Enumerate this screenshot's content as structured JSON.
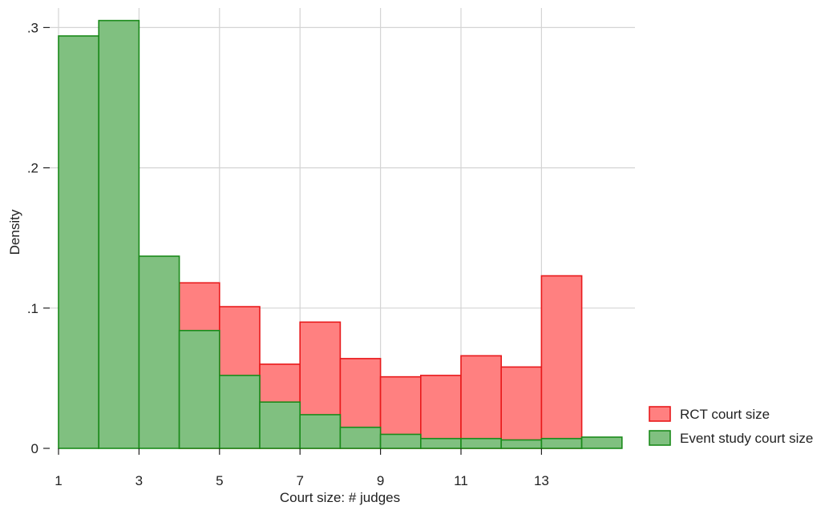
{
  "chart_data": {
    "type": "bar",
    "subtype": "overlaid-histogram",
    "title": "",
    "xlabel": "Court size: # judges",
    "ylabel": "Density",
    "xlim": [
      0.9,
      15.0
    ],
    "ylim": [
      0,
      0.3
    ],
    "x_ticks": [
      1,
      3,
      5,
      7,
      9,
      11,
      13
    ],
    "x_tick_labels": [
      "1",
      "3",
      "5",
      "7",
      "9",
      "11",
      "13"
    ],
    "y_ticks": [
      0,
      0.1,
      0.2,
      0.3
    ],
    "y_tick_labels": [
      "0",
      ".1",
      ".2",
      ".3"
    ],
    "grid": true,
    "legend_position": "bottom-right",
    "series": [
      {
        "name": "RCT court size",
        "fill": "#ff8080",
        "stroke": "#e8191b",
        "bins": [
          {
            "x0": 4,
            "x1": 5,
            "value": 0.118
          },
          {
            "x0": 5,
            "x1": 6,
            "value": 0.101
          },
          {
            "x0": 6,
            "x1": 7,
            "value": 0.06
          },
          {
            "x0": 7,
            "x1": 8,
            "value": 0.09
          },
          {
            "x0": 8,
            "x1": 9,
            "value": 0.064
          },
          {
            "x0": 9,
            "x1": 10,
            "value": 0.051
          },
          {
            "x0": 10,
            "x1": 11,
            "value": 0.052
          },
          {
            "x0": 11,
            "x1": 12,
            "value": 0.066
          },
          {
            "x0": 12,
            "x1": 13,
            "value": 0.058
          },
          {
            "x0": 13,
            "x1": 14,
            "value": 0.123
          }
        ]
      },
      {
        "name": "Event study court size",
        "fill": "#80c080",
        "stroke": "#1a8a1a",
        "bins": [
          {
            "x0": 1,
            "x1": 2,
            "value": 0.294
          },
          {
            "x0": 2,
            "x1": 3,
            "value": 0.305
          },
          {
            "x0": 3,
            "x1": 4,
            "value": 0.137
          },
          {
            "x0": 4,
            "x1": 5,
            "value": 0.084
          },
          {
            "x0": 5,
            "x1": 6,
            "value": 0.052
          },
          {
            "x0": 6,
            "x1": 7,
            "value": 0.033
          },
          {
            "x0": 7,
            "x1": 8,
            "value": 0.024
          },
          {
            "x0": 8,
            "x1": 9,
            "value": 0.015
          },
          {
            "x0": 9,
            "x1": 10,
            "value": 0.01
          },
          {
            "x0": 10,
            "x1": 11,
            "value": 0.007
          },
          {
            "x0": 11,
            "x1": 12,
            "value": 0.007
          },
          {
            "x0": 12,
            "x1": 13,
            "value": 0.006
          },
          {
            "x0": 13,
            "x1": 14,
            "value": 0.007
          },
          {
            "x0": 14,
            "x1": 15,
            "value": 0.008
          }
        ]
      }
    ]
  }
}
